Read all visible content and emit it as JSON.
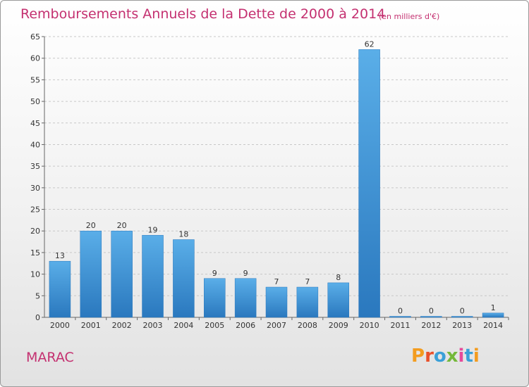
{
  "header": {
    "title": "Remboursements Annuels de la Dette de 2000 à 2014",
    "unit_note": "(en milliers d'€)"
  },
  "footer": {
    "city": "MARAC",
    "brand": "Proxiti"
  },
  "colors": {
    "title": "#c43070",
    "bar_light": "#5aaee8",
    "bar_dark": "#2a78be",
    "grid": "#c8c8c8"
  },
  "chart_data": {
    "type": "bar",
    "title": "Remboursements Annuels de la Dette de 2000 à 2014",
    "subtitle": "(en milliers d'€)",
    "xlabel": "",
    "ylabel": "",
    "categories": [
      "2000",
      "2001",
      "2002",
      "2003",
      "2004",
      "2005",
      "2006",
      "2007",
      "2008",
      "2009",
      "2010",
      "2011",
      "2012",
      "2013",
      "2014"
    ],
    "values": [
      13,
      20,
      20,
      19,
      18,
      9,
      9,
      7,
      7,
      8,
      62,
      0,
      0,
      0,
      1
    ],
    "ylim": [
      0,
      65
    ],
    "yticks": [
      0,
      5,
      10,
      15,
      20,
      25,
      30,
      35,
      40,
      45,
      50,
      55,
      60,
      65
    ],
    "grid": true,
    "grid_style": "dashed-horizontal",
    "data_labels": true
  }
}
